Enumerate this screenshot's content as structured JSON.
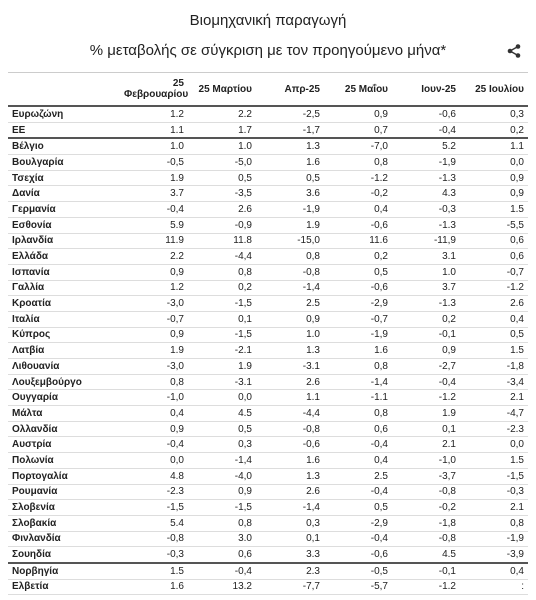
{
  "header": {
    "title": "Βιομηχανική παραγωγή",
    "subtitle": "% μεταβολής σε σύγκριση με τον προηγούμενο μήνα*"
  },
  "table": {
    "columns": [
      "25 Φεβρουαρίου",
      "25 Μαρτίου",
      "Απρ-25",
      "25 Μαΐου",
      "Ιουν-25",
      "25 Ιουλίου"
    ],
    "rows": [
      [
        "Ευρωζώνη",
        "1.2",
        "2.2",
        "-2,5",
        "0,9",
        "-0,6",
        "0,3"
      ],
      [
        "ΕΕ",
        "1.1",
        "1.7",
        "-1,7",
        "0,7",
        "-0,4",
        "0,2"
      ],
      [
        "Βέλγιο",
        "1.0",
        "1.0",
        "1.3",
        "-7,0",
        "5.2",
        "1.1"
      ],
      [
        "Βουλγαρία",
        "-0,5",
        "-5,0",
        "1.6",
        "0,8",
        "-1,9",
        "0,0"
      ],
      [
        "Τσεχία",
        "1.9",
        "0,5",
        "0,5",
        "-1.2",
        "-1.3",
        "0,9"
      ],
      [
        "Δανία",
        "3.7",
        "-3,5",
        "3.6",
        "-0,2",
        "4.3",
        "0,9"
      ],
      [
        "Γερμανία",
        "-0,4",
        "2.6",
        "-1,9",
        "0,4",
        "-0,3",
        "1.5"
      ],
      [
        "Εσθονία",
        "5.9",
        "-0,9",
        "1.9",
        "-0,6",
        "-1.3",
        "-5,5"
      ],
      [
        "Ιρλανδία",
        "11.9",
        "11.8",
        "-15,0",
        "11.6",
        "-11,9",
        "0,6"
      ],
      [
        "Ελλάδα",
        "2.2",
        "-4,4",
        "0,8",
        "0,2",
        "3.1",
        "0,6"
      ],
      [
        "Ισπανία",
        "0,9",
        "0,8",
        "-0,8",
        "0,5",
        "1.0",
        "-0,7"
      ],
      [
        "Γαλλία",
        "1.2",
        "0,2",
        "-1,4",
        "-0,6",
        "3.7",
        "-1.2"
      ],
      [
        "Κροατία",
        "-3,0",
        "-1,5",
        "2.5",
        "-2,9",
        "-1.3",
        "2.6"
      ],
      [
        "Ιταλία",
        "-0,7",
        "0,1",
        "0,9",
        "-0,7",
        "0,2",
        "0,4"
      ],
      [
        "Κύπρος",
        "0,9",
        "-1,5",
        "1.0",
        "-1,9",
        "-0,1",
        "0,5"
      ],
      [
        "Λατβία",
        "1.9",
        "-2.1",
        "1.3",
        "1.6",
        "0,9",
        "1.5"
      ],
      [
        "Λιθουανία",
        "-3,0",
        "1.9",
        "-3.1",
        "0,8",
        "-2,7",
        "-1,8"
      ],
      [
        "Λουξεμβούργο",
        "0,8",
        "-3.1",
        "2.6",
        "-1,4",
        "-0,4",
        "-3,4"
      ],
      [
        "Ουγγαρία",
        "-1,0",
        "0,0",
        "1.1",
        "-1.1",
        "-1.2",
        "2.1"
      ],
      [
        "Μάλτα",
        "0,4",
        "4.5",
        "-4,4",
        "0,8",
        "1.9",
        "-4,7"
      ],
      [
        "Ολλανδία",
        "0,9",
        "0,5",
        "-0,8",
        "0,6",
        "0,1",
        "-2.3"
      ],
      [
        "Αυστρία",
        "-0,4",
        "0,3",
        "-0,6",
        "-0,4",
        "2.1",
        "0,0"
      ],
      [
        "Πολωνία",
        "0,0",
        "-1,4",
        "1.6",
        "0,4",
        "-1,0",
        "1.5"
      ],
      [
        "Πορτογαλία",
        "4.8",
        "-4,0",
        "1.3",
        "2.5",
        "-3,7",
        "-1,5"
      ],
      [
        "Ρουμανία",
        "-2.3",
        "0,9",
        "2.6",
        "-0,4",
        "-0,8",
        "-0,3"
      ],
      [
        "Σλοβενία",
        "-1,5",
        "-1,5",
        "-1,4",
        "0,5",
        "-0,2",
        "2.1"
      ],
      [
        "Σλοβακία",
        "5.4",
        "0,8",
        "0,3",
        "-2,9",
        "-1,8",
        "0,8"
      ],
      [
        "Φινλανδία",
        "-0,8",
        "3.0",
        "0,1",
        "-0,4",
        "-0,8",
        "-1,9"
      ],
      [
        "Σουηδία",
        "-0,3",
        "0,6",
        "3.3",
        "-0,6",
        "4.5",
        "-3,9"
      ],
      [
        "Νορβηγία",
        "1.5",
        "-0,4",
        "2.3",
        "-0,5",
        "-0,1",
        "0,4"
      ],
      [
        "Ελβετία",
        "1.6",
        "13.2",
        "-7,7",
        "-5,7",
        "-1.2",
        ":"
      ]
    ]
  }
}
